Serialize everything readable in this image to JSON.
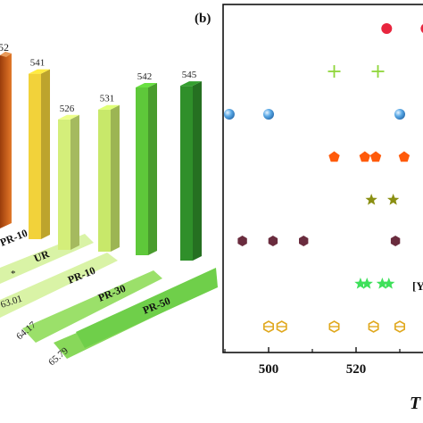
{
  "panel_a": {
    "chart_data": {
      "type": "bar",
      "title": "",
      "xlabel": "",
      "ylabel": "",
      "categories": [
        "PR-10",
        "UR",
        "PR-10",
        "PR-30",
        "PR-50"
      ],
      "bar_value_labels": [
        "541",
        "526",
        "531",
        "542",
        "545"
      ],
      "values": [
        541,
        526,
        531,
        542,
        545
      ],
      "partial_left_bar_label": "52",
      "floor_labels": [
        "63.01",
        "64.17",
        "65.79"
      ],
      "floor_labels_partial": [
        "PR-10",
        "*"
      ],
      "colors": {
        "left_partial": "#c45a1a",
        "UR": "#f2d23a",
        "PR-10": "#c8e86a",
        "PR-30": "#5ec83a",
        "PR-50": "#2f8f2a",
        "floor_stripe": "#9be06a",
        "floor_stripe_light": "#d9f3a6"
      }
    }
  },
  "panel_b": {
    "label": "(b)",
    "axis_title_partial": "T",
    "chart_data": {
      "type": "scatter",
      "xlabel": "T",
      "ylabel": "",
      "xlim": [
        490,
        538
      ],
      "x_ticks": [
        500,
        520
      ],
      "x_tick_labels": [
        "500",
        "520"
      ],
      "legend_fragment": "[Y",
      "rows": [
        {
          "marker": "circle",
          "color": "#e8253e",
          "x": [
            527,
            536
          ]
        },
        {
          "marker": "plus",
          "color": "#8fd63a",
          "x": [
            515,
            525
          ]
        },
        {
          "marker": "sphere",
          "color": "#5aa9e6",
          "x": [
            491,
            500,
            530
          ]
        },
        {
          "marker": "pentagon",
          "color": "#ff5a0a",
          "x": [
            515,
            522,
            524.5,
            531
          ]
        },
        {
          "marker": "star",
          "color": "#8a8f12",
          "x": [
            523.5,
            528.5
          ]
        },
        {
          "marker": "hexagon",
          "color": "#6a2c3e",
          "x": [
            494,
            501,
            508,
            529
          ]
        },
        {
          "marker": "star",
          "color": "#3ee05a",
          "x": [
            521,
            522.5,
            526,
            527.5
          ]
        },
        {
          "marker": "hex-outline",
          "color": "#e0a81e",
          "x": [
            500,
            503,
            515,
            524,
            530
          ]
        }
      ]
    }
  }
}
